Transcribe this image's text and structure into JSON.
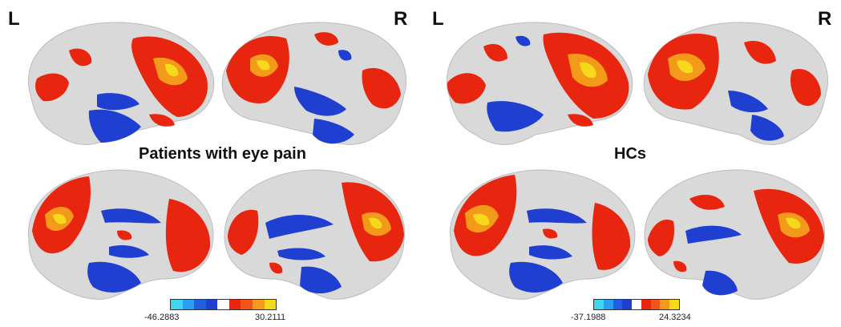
{
  "panels": [
    {
      "title": "Patients with  eye pain",
      "left_label": "L",
      "right_label": "R",
      "colorbar": {
        "min": "-46.2883",
        "max": "30.2111"
      }
    },
    {
      "title": "HCs",
      "left_label": "L",
      "right_label": "R",
      "colorbar": {
        "min": "-37.1988",
        "max": "24.3234"
      }
    }
  ],
  "colors": {
    "cortex": "#d9d9d9",
    "positive_low": "#e8260f",
    "positive_high": "#f6d91b",
    "negative": "#1f3fd1",
    "negative_light": "#3fd4f2"
  }
}
